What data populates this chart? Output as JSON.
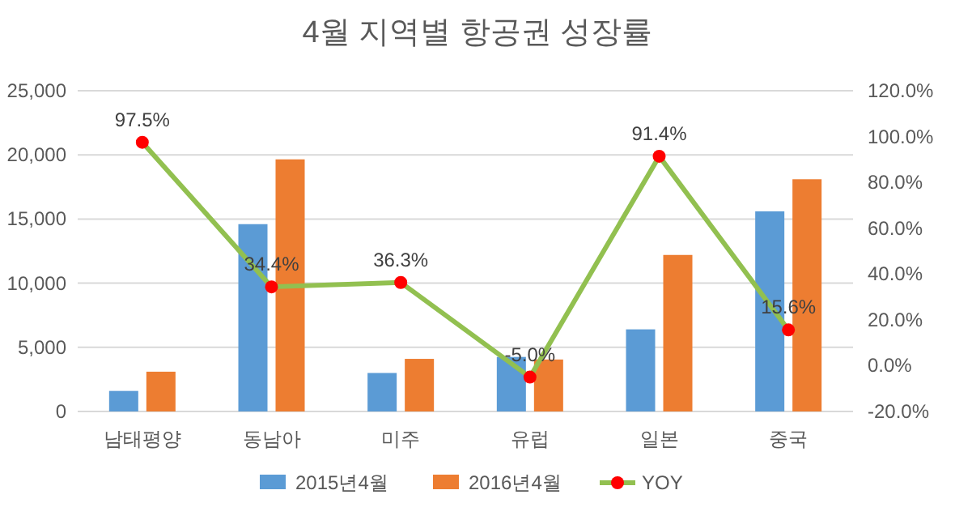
{
  "chart_data": {
    "type": "bar",
    "title": "4월 지역별 항공권 성장률",
    "categories": [
      "남태평양",
      "동남아",
      "미주",
      "유럽",
      "일본",
      "중국"
    ],
    "series": [
      {
        "name": "2015년4월",
        "color": "#5b9bd5",
        "values": [
          1600,
          14600,
          3000,
          4250,
          6400,
          15600
        ]
      },
      {
        "name": "2016년4월",
        "color": "#ed7d31",
        "values": [
          3100,
          19650,
          4100,
          4050,
          12200,
          18100
        ]
      },
      {
        "name": "YOY",
        "type": "line",
        "axis": "y2",
        "color": "#92c050",
        "colors": [
          "#ff0000",
          "#ff0000",
          "#ff0000",
          "#ff0000",
          "#ff0000",
          "#ff0000"
        ],
        "marker": "circle",
        "values": [
          97.5,
          34.4,
          36.3,
          -5.0,
          91.4,
          15.6
        ],
        "value_labels": [
          "97.5%",
          "34.4%",
          "36.3%",
          "-5.0%",
          "91.4%",
          "15.6%"
        ]
      }
    ],
    "ylim": [
      0,
      25000
    ],
    "yticks": [
      {
        "value": 0,
        "label": "0"
      },
      {
        "value": 5000,
        "label": "5,000"
      },
      {
        "value": 10000,
        "label": "10,000"
      },
      {
        "value": 15000,
        "label": "15,000"
      },
      {
        "value": 20000,
        "label": "20,000"
      },
      {
        "value": 25000,
        "label": "25,000"
      }
    ],
    "y2lim": [
      -20,
      120
    ],
    "y2ticks": [
      {
        "value": -20,
        "label": "-20.0%"
      },
      {
        "value": 0,
        "label": "0.0%"
      },
      {
        "value": 20,
        "label": "20.0%"
      },
      {
        "value": 40,
        "label": "40.0%"
      },
      {
        "value": 60,
        "label": "60.0%"
      },
      {
        "value": 80,
        "label": "80.0%"
      },
      {
        "value": 100,
        "label": "100.0%"
      },
      {
        "value": 120,
        "label": "120.0%"
      }
    ],
    "grid": "y",
    "legend": "bottom"
  }
}
